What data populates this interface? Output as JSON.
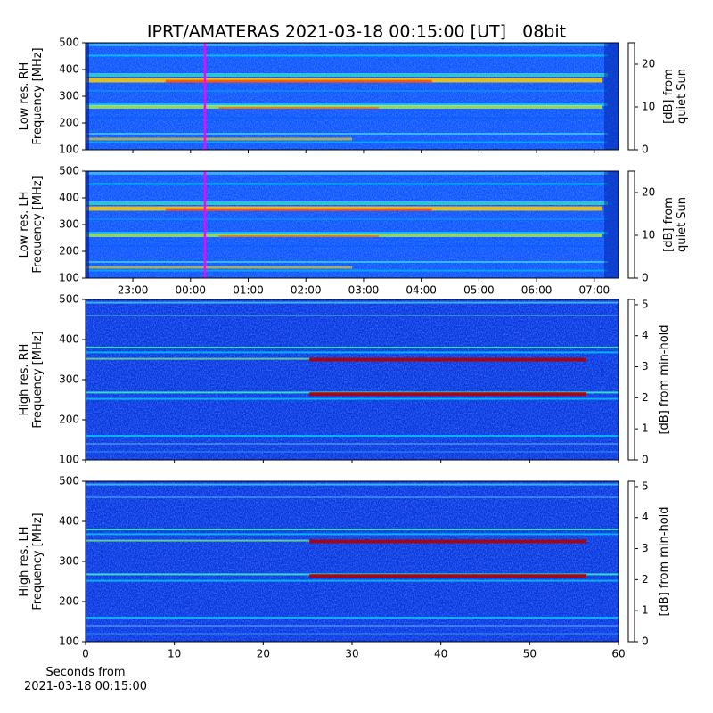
{
  "chart_data": [
    {
      "type": "heatmap",
      "title": "IPRT/AMATERAS 2021-03-18 00:15:00 [UT]   08bit",
      "ylabel": [
        "Low res. RH",
        "Frequency [MHz]"
      ],
      "ylim": [
        100,
        500
      ],
      "yticks": [
        100,
        200,
        300,
        400,
        500
      ],
      "xlim": [
        -1.82,
        7.42
      ],
      "vline": {
        "value": 0.25,
        "color": "#ff00ff"
      },
      "colorbar": {
        "label": [
          "[dB] from",
          "quiet Sun"
        ],
        "lim": [
          0,
          25
        ],
        "ticks": [
          0,
          10,
          20
        ]
      }
    },
    {
      "type": "heatmap",
      "ylabel": [
        "Low res. LH",
        "Frequency [MHz]"
      ],
      "ylim": [
        100,
        500
      ],
      "yticks": [
        100,
        200,
        300,
        400,
        500
      ],
      "xlim": [
        -1.82,
        7.42
      ],
      "xticks": [
        {
          "value": -1,
          "label": "23:00"
        },
        {
          "value": 0,
          "label": "00:00"
        },
        {
          "value": 1,
          "label": "01:00"
        },
        {
          "value": 2,
          "label": "02:00"
        },
        {
          "value": 3,
          "label": "03:00"
        },
        {
          "value": 4,
          "label": "04:00"
        },
        {
          "value": 5,
          "label": "05:00"
        },
        {
          "value": 6,
          "label": "06:00"
        },
        {
          "value": 7,
          "label": "07:00"
        }
      ],
      "vline": {
        "value": 0.25,
        "color": "#ff00ff"
      },
      "colorbar": {
        "label": [
          "[dB] from",
          "quiet Sun"
        ],
        "lim": [
          0,
          25
        ],
        "ticks": [
          0,
          10,
          20
        ]
      }
    },
    {
      "type": "heatmap",
      "ylabel": [
        "High res. RH",
        "Frequency [MHz]"
      ],
      "ylim": [
        100,
        500
      ],
      "yticks": [
        100,
        200,
        300,
        400,
        500
      ],
      "xlim": [
        0,
        60
      ],
      "colorbar": {
        "label": [
          "[dB] from min-hold"
        ],
        "lim": [
          0,
          5.17
        ],
        "ticks": [
          0,
          1,
          2,
          3,
          4,
          5
        ]
      }
    },
    {
      "type": "heatmap",
      "ylabel": [
        "High res. LH",
        "Frequency [MHz]"
      ],
      "ylim": [
        100,
        500
      ],
      "yticks": [
        100,
        200,
        300,
        400,
        500
      ],
      "xlim": [
        0,
        60
      ],
      "xticks": [
        0,
        10,
        20,
        30,
        40,
        50,
        60
      ],
      "xlabel": [
        "Seconds from",
        "2021-03-18 00:15:00"
      ],
      "colorbar": {
        "label": [
          "[dB] from min-hold"
        ],
        "lim": [
          0,
          5.17
        ],
        "ticks": [
          0,
          1,
          2,
          3,
          4,
          5
        ]
      }
    }
  ]
}
